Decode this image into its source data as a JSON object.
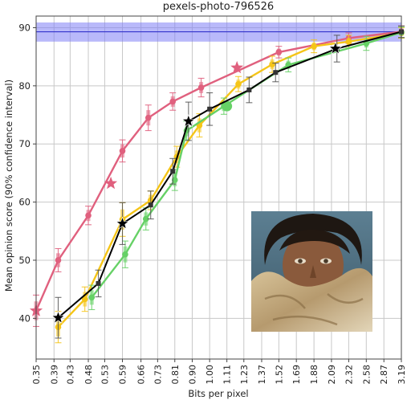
{
  "chart_data": {
    "type": "line",
    "title": "pexels-photo-796526",
    "xlabel": "Bits per pixel",
    "ylabel": "Mean opinion score (90% confidence interval)",
    "xscale": "log",
    "xlim": [
      0.35,
      3.19
    ],
    "ylim": [
      33,
      92
    ],
    "x_tick_labels": [
      "0.35",
      "0.39",
      "0.43",
      "0.48",
      "0.53",
      "0.59",
      "0.66",
      "0.73",
      "0.81",
      "0.90",
      "1.00",
      "1.11",
      "1.23",
      "1.37",
      "1.52",
      "1.69",
      "1.88",
      "2.09",
      "2.32",
      "2.58",
      "2.87",
      "3.19"
    ],
    "y_ticks": [
      40,
      50,
      60,
      70,
      80,
      90
    ],
    "grid": true,
    "reference_band": {
      "center": 89.3,
      "low": 87.6,
      "high": 90.9,
      "color": "#6666ee"
    },
    "series": [
      {
        "color": "#e0607e",
        "points": [
          {
            "x": 0.35,
            "y": 41.3,
            "err": 2.7
          },
          {
            "x": 0.4,
            "y": 50.0,
            "err": 2.0
          },
          {
            "x": 0.48,
            "y": 57.7,
            "err": 1.6
          },
          {
            "x": 0.59,
            "y": 68.8,
            "err": 1.9
          },
          {
            "x": 0.69,
            "y": 74.5,
            "err": 2.2
          },
          {
            "x": 0.8,
            "y": 77.3,
            "err": 1.5
          },
          {
            "x": 0.95,
            "y": 79.7,
            "err": 1.6
          },
          {
            "x": 1.52,
            "y": 85.8,
            "err": 1.0
          },
          {
            "x": 2.32,
            "y": 88.2,
            "err": 0.9
          },
          {
            "x": 3.19,
            "y": 89.3,
            "err": 1.0
          }
        ],
        "stars": [
          {
            "x": 0.35,
            "y": 41.3
          },
          {
            "x": 0.55,
            "y": 63.2
          },
          {
            "x": 1.18,
            "y": 83.1
          }
        ]
      },
      {
        "color": "#f5c518",
        "points": [
          {
            "x": 0.4,
            "y": 38.5,
            "err": 2.7
          },
          {
            "x": 0.47,
            "y": 43.3,
            "err": 2.1
          },
          {
            "x": 0.59,
            "y": 57.0,
            "err": 2.9
          },
          {
            "x": 0.7,
            "y": 60.3,
            "err": 1.6
          },
          {
            "x": 0.82,
            "y": 67.8,
            "err": 1.8
          },
          {
            "x": 0.94,
            "y": 73.2,
            "err": 2.0
          },
          {
            "x": 1.19,
            "y": 80.3,
            "err": 1.3
          },
          {
            "x": 1.46,
            "y": 83.7,
            "err": 1.4
          },
          {
            "x": 1.88,
            "y": 86.8,
            "err": 1.1
          },
          {
            "x": 2.32,
            "y": 87.6,
            "err": 1.1
          },
          {
            "x": 3.19,
            "y": 89.1,
            "err": 0.9
          }
        ]
      },
      {
        "color": "#66d166",
        "points": [
          {
            "x": 0.49,
            "y": 43.6,
            "err": 2.1
          },
          {
            "x": 0.6,
            "y": 51.0,
            "err": 2.3
          },
          {
            "x": 0.68,
            "y": 57.1,
            "err": 1.9
          },
          {
            "x": 0.81,
            "y": 63.8,
            "err": 1.8
          },
          {
            "x": 0.87,
            "y": 72.3,
            "err": 1.6
          },
          {
            "x": 1.09,
            "y": 76.5,
            "err": 1.4
          },
          {
            "x": 1.61,
            "y": 83.6,
            "err": 1.2
          },
          {
            "x": 2.58,
            "y": 87.3,
            "err": 1.2
          },
          {
            "x": 3.19,
            "y": 89.2,
            "err": 0.9
          }
        ],
        "large_markers": [
          {
            "x": 1.11,
            "y": 76.5
          }
        ]
      },
      {
        "color": "#000000",
        "points": [
          {
            "x": 0.4,
            "y": 40.1,
            "err": 3.5
          },
          {
            "x": 0.51,
            "y": 46.0,
            "err": 2.3
          },
          {
            "x": 0.59,
            "y": 56.3,
            "err": 3.6
          },
          {
            "x": 0.7,
            "y": 59.5,
            "err": 2.4
          },
          {
            "x": 0.8,
            "y": 65.3,
            "err": 2.2
          },
          {
            "x": 0.88,
            "y": 73.9,
            "err": 3.3
          },
          {
            "x": 1.0,
            "y": 76.0,
            "err": 2.8
          },
          {
            "x": 1.27,
            "y": 79.3,
            "err": 2.2
          },
          {
            "x": 1.49,
            "y": 82.3,
            "err": 1.6
          },
          {
            "x": 2.16,
            "y": 86.4,
            "err": 2.3
          },
          {
            "x": 3.19,
            "y": 89.3,
            "err": 1.0
          }
        ],
        "stars": [
          {
            "x": 0.4,
            "y": 40.1
          },
          {
            "x": 0.59,
            "y": 56.3
          },
          {
            "x": 0.88,
            "y": 73.9
          },
          {
            "x": 2.14,
            "y": 86.4
          }
        ]
      }
    ]
  },
  "colors": {
    "frame": "#444444",
    "grid": "#c8c8c8",
    "band_fill": "#8080f5",
    "band_line": "#3333cc"
  }
}
